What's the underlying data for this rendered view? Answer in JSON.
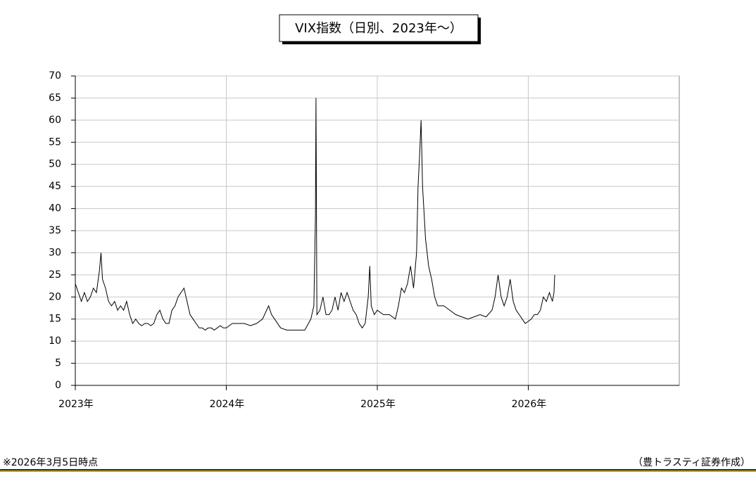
{
  "chart_data": {
    "type": "line",
    "title": "VIX指数（日別、2023年～）",
    "note": "※2026年3月5日時点",
    "source": "（豊トラスティ証券作成）",
    "xlim": [
      2023,
      2027
    ],
    "xticks": [
      {
        "value": 2023,
        "label": "2023年"
      },
      {
        "value": 2024,
        "label": "2024年"
      },
      {
        "value": 2025,
        "label": "2025年"
      },
      {
        "value": 2026,
        "label": "2026年"
      }
    ],
    "ylim": [
      0,
      70
    ],
    "yticks": [
      0,
      5,
      10,
      15,
      20,
      25,
      30,
      35,
      40,
      45,
      50,
      55,
      60,
      65,
      70
    ],
    "grid": true,
    "color": "#000000",
    "x": [
      2023.0,
      2023.02,
      2023.04,
      2023.06,
      2023.08,
      2023.1,
      2023.12,
      2023.14,
      2023.16,
      2023.17,
      2023.18,
      2023.2,
      2023.22,
      2023.24,
      2023.26,
      2023.28,
      2023.3,
      2023.32,
      2023.34,
      2023.36,
      2023.38,
      2023.4,
      2023.42,
      2023.44,
      2023.46,
      2023.48,
      2023.5,
      2023.52,
      2023.54,
      2023.56,
      2023.58,
      2023.6,
      2023.62,
      2023.64,
      2023.66,
      2023.68,
      2023.7,
      2023.72,
      2023.74,
      2023.76,
      2023.78,
      2023.8,
      2023.82,
      2023.84,
      2023.86,
      2023.88,
      2023.9,
      2023.92,
      2023.94,
      2023.96,
      2023.98,
      2024.0,
      2024.04,
      2024.08,
      2024.12,
      2024.16,
      2024.2,
      2024.24,
      2024.28,
      2024.3,
      2024.32,
      2024.36,
      2024.4,
      2024.44,
      2024.48,
      2024.52,
      2024.56,
      2024.58,
      2024.59,
      2024.594,
      2024.6,
      2024.62,
      2024.64,
      2024.66,
      2024.68,
      2024.7,
      2024.72,
      2024.74,
      2024.76,
      2024.78,
      2024.8,
      2024.84,
      2024.86,
      2024.88,
      2024.9,
      2024.92,
      2024.94,
      2024.95,
      2024.96,
      2024.98,
      2025.0,
      2025.04,
      2025.08,
      2025.12,
      2025.14,
      2025.16,
      2025.18,
      2025.2,
      2025.22,
      2025.24,
      2025.26,
      2025.27,
      2025.28,
      2025.29,
      2025.3,
      2025.32,
      2025.34,
      2025.36,
      2025.38,
      2025.4,
      2025.44,
      2025.48,
      2025.52,
      2025.56,
      2025.6,
      2025.64,
      2025.68,
      2025.72,
      2025.76,
      2025.78,
      2025.8,
      2025.82,
      2025.84,
      2025.86,
      2025.88,
      2025.9,
      2025.92,
      2025.94,
      2025.96,
      2025.98,
      2026.0,
      2026.02,
      2026.04,
      2026.06,
      2026.08,
      2026.1,
      2026.12,
      2026.14,
      2026.16,
      2026.17,
      2026.175
    ],
    "values": [
      23,
      21,
      19,
      21,
      19,
      20,
      22,
      21,
      26,
      30,
      24,
      22,
      19,
      18,
      19,
      17,
      18,
      17,
      19,
      16,
      14,
      15,
      14,
      13.5,
      14,
      14,
      13.5,
      14,
      16,
      17,
      15,
      14,
      14,
      17,
      18,
      20,
      21,
      22,
      19,
      16,
      15,
      14,
      13,
      13,
      12.5,
      13,
      13,
      12.5,
      13,
      13.5,
      13,
      13,
      14,
      14,
      14,
      13.5,
      14,
      15,
      18,
      16,
      15,
      13,
      12.5,
      12.5,
      12.5,
      12.5,
      15,
      18,
      38,
      65,
      16,
      17,
      20,
      16,
      16,
      17,
      20,
      17,
      21,
      19,
      21,
      17,
      16,
      14,
      13,
      14,
      20,
      27,
      18,
      16,
      17,
      16,
      16,
      15,
      18,
      22,
      21,
      23,
      27,
      22,
      30,
      45,
      52,
      60,
      45,
      33,
      27,
      24,
      20,
      18,
      18,
      17,
      16,
      15.5,
      15,
      15.5,
      16,
      15.5,
      17,
      20,
      25,
      20,
      18,
      20,
      24,
      19,
      17,
      16,
      15,
      14,
      14.5,
      15,
      16,
      16,
      17,
      20,
      19,
      21,
      19,
      21,
      25
    ]
  }
}
